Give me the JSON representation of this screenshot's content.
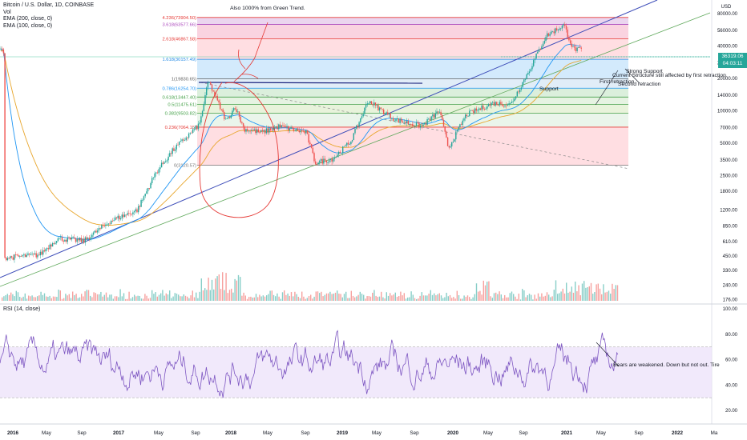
{
  "header": {
    "symbol": "Bitcoin / U.S. Dollar, 1D, COINBASE",
    "vol_label": "Vol",
    "ema1_label": "EMA (200, close, 0)",
    "ema2_label": "EMA (100, close, 0)"
  },
  "rsi_title": "RSI (14, close)",
  "price_tag": {
    "price": "36319.06",
    "countdown": "04:03:11"
  },
  "colors": {
    "up": "#26a69a",
    "down": "#ef5350",
    "rsi_line": "#7e57c2",
    "rsi_fill": "#ede3fa",
    "blue_channel": "#3b4bb8",
    "green_trend": "#5fa85b",
    "ema200": "#e8a62d",
    "ema100": "#2196f3"
  },
  "chart_data": [
    {
      "type": "line",
      "title": "Bitcoin / U.S. Dollar, 1D, COINBASE",
      "scale": "log",
      "unit_label": "USD",
      "y_ticks": [
        "120000.00",
        "80000.00",
        "56000.00",
        "40000.00",
        "28000.00",
        "20000.00",
        "14000.00",
        "10000.00",
        "7000.00",
        "5000.00",
        "3500.00",
        "2500.00",
        "1800.00",
        "1200.00",
        "850.00",
        "610.00",
        "450.00",
        "330.00",
        "240.00",
        "176.00"
      ],
      "x_labels": [
        "2016",
        "May",
        "Sep",
        "2017",
        "May",
        "Sep",
        "2018",
        "May",
        "Sep",
        "2019",
        "May",
        "Sep",
        "2020",
        "May",
        "Sep",
        "2021",
        "May",
        "Sep",
        "2022",
        "Ma"
      ],
      "price_points": [
        {
          "x": "2016-01",
          "y": 430
        },
        {
          "x": "2016-05",
          "y": 460
        },
        {
          "x": "2016-07",
          "y": 650
        },
        {
          "x": "2016-10",
          "y": 620
        },
        {
          "x": "2017-01",
          "y": 950
        },
        {
          "x": "2017-04",
          "y": 1200
        },
        {
          "x": "2017-06",
          "y": 2600
        },
        {
          "x": "2017-08",
          "y": 4300
        },
        {
          "x": "2017-11",
          "y": 7500
        },
        {
          "x": "2017-12",
          "y": 19000
        },
        {
          "x": "2018-02",
          "y": 8000
        },
        {
          "x": "2018-03",
          "y": 11000
        },
        {
          "x": "2018-04",
          "y": 6800
        },
        {
          "x": "2018-06",
          "y": 6300
        },
        {
          "x": "2018-08",
          "y": 7200
        },
        {
          "x": "2018-11",
          "y": 6300
        },
        {
          "x": "2018-12",
          "y": 3300
        },
        {
          "x": "2019-02",
          "y": 3600
        },
        {
          "x": "2019-04",
          "y": 5200
        },
        {
          "x": "2019-06",
          "y": 12500
        },
        {
          "x": "2019-07",
          "y": 10800
        },
        {
          "x": "2019-09",
          "y": 8300
        },
        {
          "x": "2019-12",
          "y": 7200
        },
        {
          "x": "2020-02",
          "y": 10000
        },
        {
          "x": "2020-03",
          "y": 4500
        },
        {
          "x": "2020-05",
          "y": 9200
        },
        {
          "x": "2020-08",
          "y": 11800
        },
        {
          "x": "2020-10",
          "y": 11500
        },
        {
          "x": "2020-12",
          "y": 23000
        },
        {
          "x": "2021-02",
          "y": 50000
        },
        {
          "x": "2021-04",
          "y": 63000
        },
        {
          "x": "2021-05",
          "y": 38000
        },
        {
          "x": "2021-06",
          "y": 36319
        }
      ],
      "fibonacci_levels": [
        {
          "label": "4.236(73904.50)",
          "price": 73904.5
        },
        {
          "label": "3.618(63577.66)",
          "price": 63577.66
        },
        {
          "label": "2.618(46867.58)",
          "price": 46867.58
        },
        {
          "label": "1.618(30157.49)",
          "price": 30157.49
        },
        {
          "label": "1(19830.65)",
          "price": 19830.65
        },
        {
          "label": "0.786(16254.70)",
          "price": 16254.7
        },
        {
          "label": "0.618(13447.40)",
          "price": 13447.4
        },
        {
          "label": "0.5(11475.61)",
          "price": 11475.61
        },
        {
          "label": "0.382(9503.82)",
          "price": 9503.82
        },
        {
          "label": "0.236(7064.15)",
          "price": 7064.15
        },
        {
          "label": "0(3120.57)",
          "price": 3120.57
        }
      ],
      "series": [
        {
          "name": "EMA (200, close, 0)"
        },
        {
          "name": "EMA (100, close, 0)"
        }
      ],
      "annotations": [
        "Also 1000% from Green Trend.",
        "Strong Support",
        "Current Structure still affected by first retraction",
        "First retraction",
        "Second retraction",
        "Support"
      ]
    },
    {
      "type": "line",
      "title": "RSI (14, close)",
      "y_ticks": [
        "100.00",
        "80.00",
        "60.00",
        "40.00",
        "20.00"
      ],
      "bands": [
        70,
        30
      ],
      "annotation": "Bears are weakened. Down but not out. Tire"
    }
  ]
}
